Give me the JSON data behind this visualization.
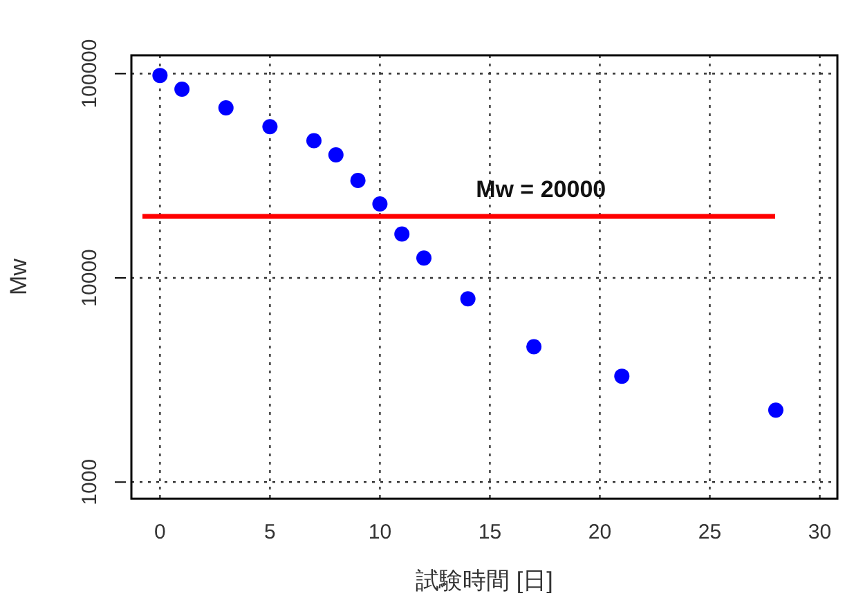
{
  "chart_data": {
    "type": "scatter",
    "xlabel": "試験時間 [日]",
    "ylabel": "Mw",
    "x": [
      0,
      1,
      3,
      5,
      7,
      8,
      9,
      10,
      11,
      12,
      14,
      17,
      21,
      28
    ],
    "series": [
      {
        "color": "#0000ff",
        "values": [
          98000,
          84000,
          68000,
          55000,
          47000,
          40000,
          30000,
          23000,
          16400,
          12500,
          7900,
          4600,
          3300,
          2250
        ]
      }
    ],
    "xlim": [
      -1.3,
      30.8
    ],
    "xticks": [
      0,
      5,
      10,
      15,
      20,
      25,
      30
    ],
    "ylim": [
      830,
      123000
    ],
    "yticks": [
      1000,
      10000,
      100000
    ],
    "log": "y",
    "grid": true,
    "marker": "circle",
    "legend": false,
    "ref_lines": [
      {
        "axis": "y",
        "value": 20000,
        "label": "Mw = 20000",
        "color": "#ff0000"
      }
    ]
  }
}
